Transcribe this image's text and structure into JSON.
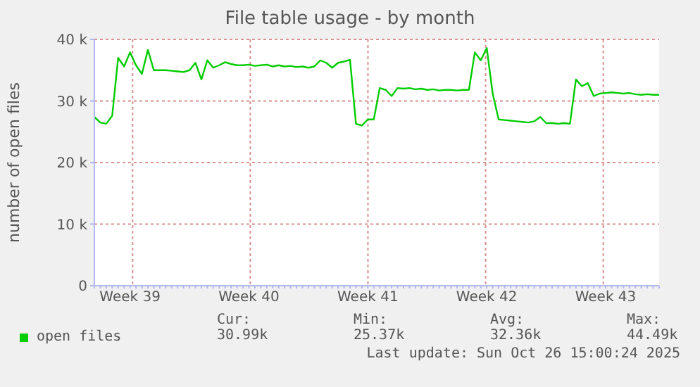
{
  "chart_data": {
    "type": "line",
    "title": "File table usage - by month",
    "ylabel": "number of open files",
    "categories": [
      null,
      null,
      null,
      null,
      null,
      null,
      "Week 39",
      null,
      null,
      null,
      null,
      null,
      null,
      null,
      null,
      null,
      null,
      null,
      null,
      null,
      null,
      null,
      null,
      null,
      null,
      null,
      "Week 40",
      null,
      null,
      null,
      null,
      null,
      null,
      null,
      null,
      null,
      null,
      null,
      null,
      null,
      null,
      null,
      null,
      null,
      null,
      null,
      "Week 41",
      null,
      null,
      null,
      null,
      null,
      null,
      null,
      null,
      null,
      null,
      null,
      null,
      null,
      null,
      null,
      null,
      null,
      null,
      null,
      "Week 42",
      null,
      null,
      null,
      null,
      null,
      null,
      null,
      null,
      null,
      null,
      null,
      null,
      null,
      null,
      null,
      null,
      null,
      null,
      null,
      "Week 43",
      null,
      null,
      null,
      null,
      null,
      null,
      null,
      null,
      null
    ],
    "series": [
      {
        "name": "open files",
        "color": "#00cc00",
        "values": [
          27400,
          26500,
          26300,
          27600,
          37000,
          35600,
          37900,
          35800,
          34400,
          38300,
          35000,
          35000,
          35000,
          34900,
          34800,
          34700,
          35000,
          36200,
          33500,
          36600,
          35400,
          35800,
          36300,
          36000,
          35800,
          35800,
          35900,
          35700,
          35800,
          35900,
          35600,
          35800,
          35600,
          35700,
          35500,
          35600,
          35400,
          35600,
          36600,
          36200,
          35400,
          36200,
          36400,
          36700,
          26300,
          26000,
          27000,
          27000,
          32100,
          31800,
          30800,
          32100,
          32000,
          32100,
          31900,
          32000,
          31800,
          31900,
          31700,
          31800,
          31800,
          31700,
          31800,
          31800,
          37900,
          36600,
          38600,
          31200,
          27000,
          26900,
          26800,
          26700,
          26600,
          26500,
          26700,
          27400,
          26400,
          26400,
          26300,
          26400,
          26300,
          33500,
          32400,
          32900,
          30800,
          31200,
          31300,
          31400,
          31300,
          31200,
          31300,
          31100,
          31000,
          31100,
          31000,
          31000
        ]
      }
    ],
    "ylim": [
      0,
      40000
    ],
    "yticks": [
      0,
      {
        "value": 10000,
        "label": "10 k"
      },
      {
        "value": 20000,
        "label": "20 k"
      },
      {
        "value": 30000,
        "label": "30 k"
      },
      {
        "value": 40000,
        "label": "40 k"
      }
    ],
    "grid": true,
    "legend": "bottom",
    "marker": "none",
    "line_style": "solid",
    "annotations": [
      "Cur:",
      "Min:",
      "Avg:",
      "Max:",
      "30.99k",
      "25.37k",
      "32.36k",
      "44.49k",
      "Last update: Sun Oct 26 15:00:24 2025"
    ]
  }
}
